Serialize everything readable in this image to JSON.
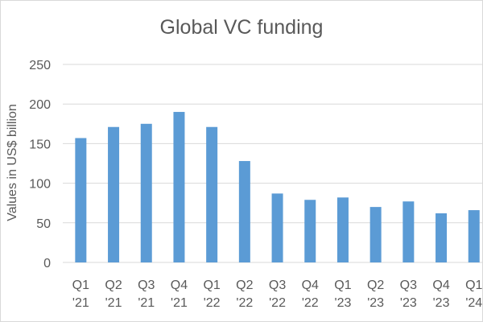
{
  "chart_data": {
    "type": "bar",
    "title": "Global VC funding",
    "xlabel": "",
    "ylabel": "Values in US$ billion",
    "categories": [
      [
        "Q1",
        "'21"
      ],
      [
        "Q2",
        "'21"
      ],
      [
        "Q3",
        "'21"
      ],
      [
        "Q4",
        "'21"
      ],
      [
        "Q1",
        "'22"
      ],
      [
        "Q2",
        "'22"
      ],
      [
        "Q3",
        "'22"
      ],
      [
        "Q4",
        "'22"
      ],
      [
        "Q1",
        "'23"
      ],
      [
        "Q2",
        "'23"
      ],
      [
        "Q3",
        "'23"
      ],
      [
        "Q4",
        "'23"
      ],
      [
        "Q1",
        "'24"
      ]
    ],
    "values": [
      157,
      171,
      175,
      190,
      171,
      128,
      87,
      79,
      82,
      70,
      77,
      62,
      66
    ],
    "ylim": [
      0,
      250
    ],
    "yticks": [
      0,
      50,
      100,
      150,
      200,
      250
    ],
    "grid": true,
    "legend": "none",
    "colors": {
      "bar": "#5b9bd5",
      "grid": "#d9d9d9",
      "text": "#595959"
    }
  }
}
